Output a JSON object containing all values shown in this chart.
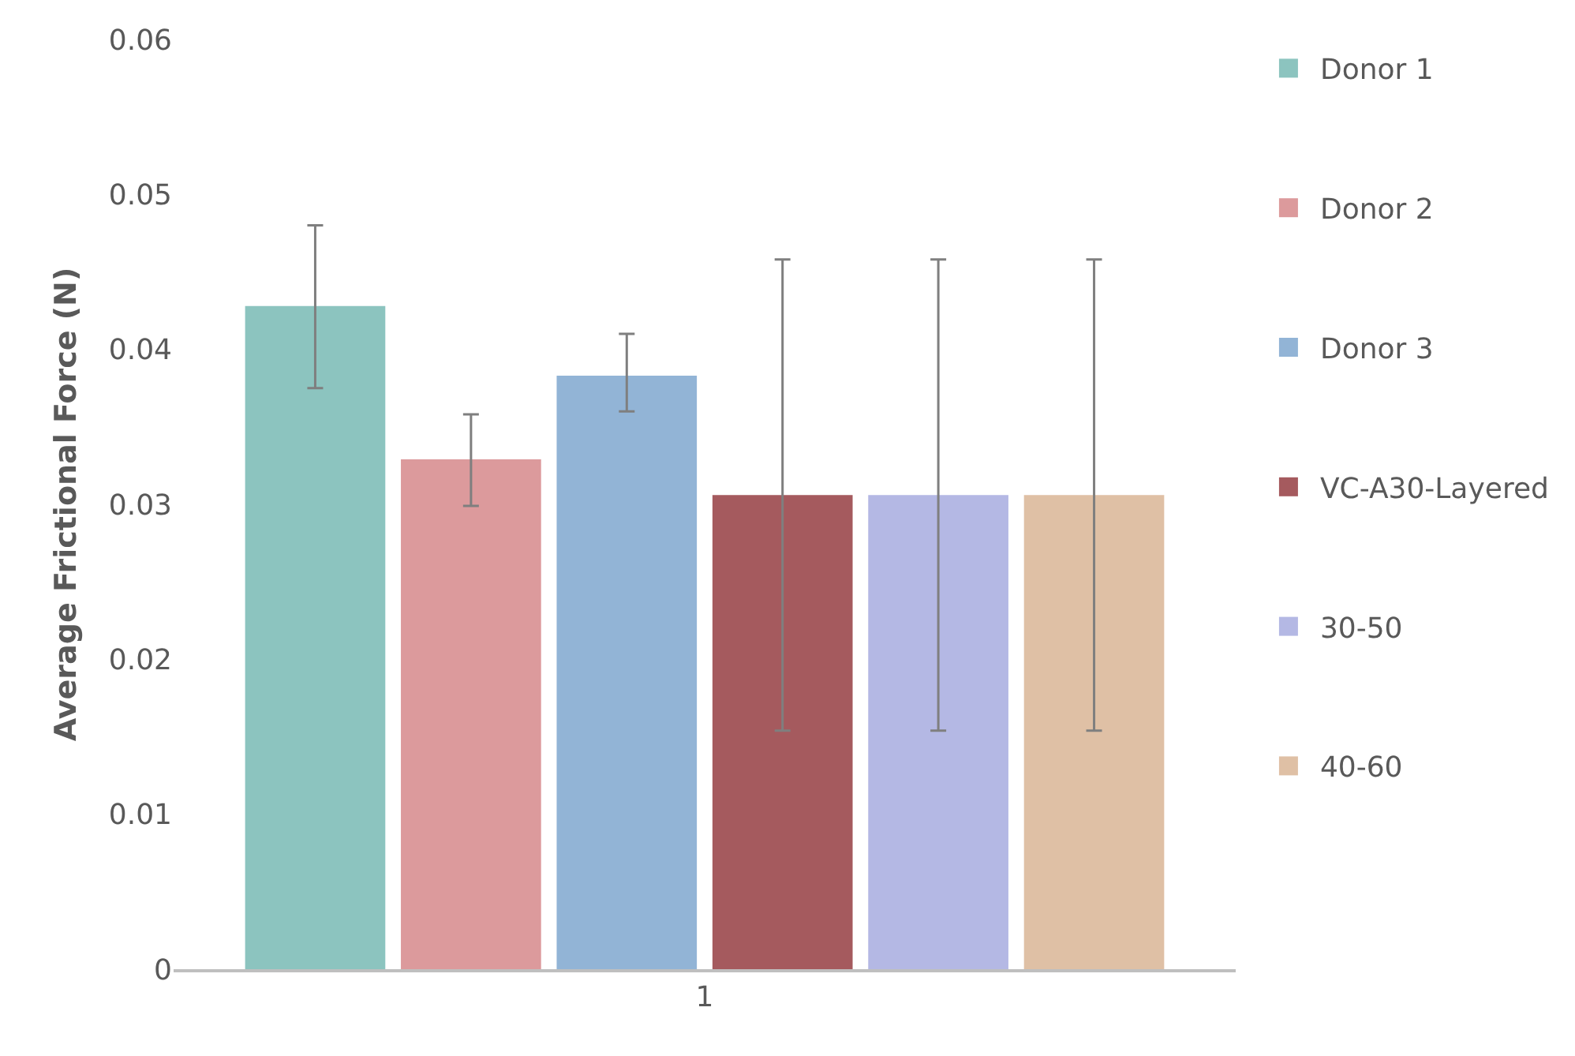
{
  "chart_data": {
    "type": "bar",
    "ylabel": "Average Frictional Force (N)",
    "categories": [
      "1"
    ],
    "series": [
      {
        "name": "Donor 1",
        "color": "#8cc4bf",
        "values": [
          0.0428
        ],
        "errors": [
          [
            0.0375,
            0.048
          ]
        ]
      },
      {
        "name": "Donor 2",
        "color": "#dc9a9c",
        "values": [
          0.0329
        ],
        "errors": [
          [
            0.0299,
            0.0358
          ]
        ]
      },
      {
        "name": "Donor 3",
        "color": "#92b4d6",
        "values": [
          0.0383
        ],
        "errors": [
          [
            0.036,
            0.041
          ]
        ]
      },
      {
        "name": "VC-A30-Layered",
        "color": "#a55a5e",
        "values": [
          0.0306
        ],
        "errors": [
          [
            0.0154,
            0.0458
          ]
        ]
      },
      {
        "name": "30-50",
        "color": "#b4b8e4",
        "values": [
          0.0306
        ],
        "errors": [
          [
            0.0154,
            0.0458
          ]
        ]
      },
      {
        "name": "40-60",
        "color": "#dfc0a5",
        "values": [
          0.0306
        ],
        "errors": [
          [
            0.0154,
            0.0458
          ]
        ]
      }
    ],
    "ylim": [
      0,
      0.06
    ],
    "yticks": [
      0,
      0.01,
      0.02,
      0.03,
      0.04,
      0.05,
      0.06
    ],
    "legend": "right"
  }
}
